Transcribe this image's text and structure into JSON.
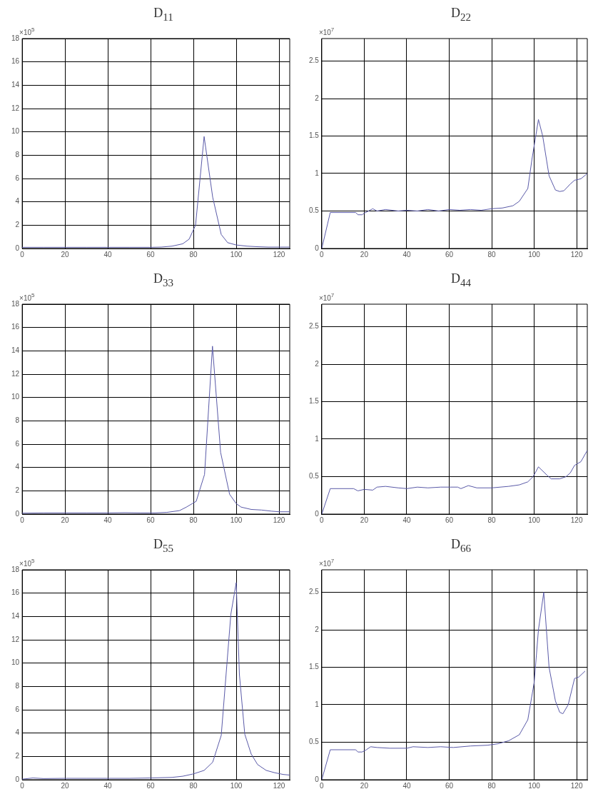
{
  "chart_data": [
    {
      "type": "line",
      "title": "D$_{11}$",
      "ylabel": "×10$^{5}$",
      "xlim": [
        0,
        125
      ],
      "ylim": [
        0,
        18
      ],
      "xticks": [
        0,
        20,
        40,
        60,
        80,
        100,
        120
      ],
      "yticks": [
        0,
        2,
        4,
        6,
        8,
        10,
        12,
        14,
        16,
        18
      ],
      "grid": true,
      "marker": "none",
      "line_style": "solid",
      "x": [
        0,
        10,
        20,
        30,
        40,
        50,
        60,
        65,
        70,
        75,
        78,
        81,
        85,
        89,
        93,
        96,
        100,
        105,
        110,
        115,
        120,
        125
      ],
      "series": [
        {
          "color": "#5a5aa8",
          "values": [
            0.1,
            0.1,
            0.1,
            0.1,
            0.1,
            0.1,
            0.1,
            0.12,
            0.2,
            0.4,
            0.8,
            2,
            9.6,
            4.4,
            1.2,
            0.5,
            0.3,
            0.2,
            0.15,
            0.12,
            0.12,
            0.12
          ]
        }
      ]
    },
    {
      "type": "line",
      "title": "D$_{22}$",
      "ylabel": "×10$^{7}$",
      "xlim": [
        0,
        125
      ],
      "ylim": [
        0,
        2.8
      ],
      "xticks": [
        0,
        20,
        40,
        60,
        80,
        100,
        120
      ],
      "yticks": [
        0,
        0.5,
        1,
        1.5,
        2,
        2.5
      ],
      "grid": true,
      "marker": "none",
      "line_style": "solid",
      "x": [
        0,
        4,
        16,
        17,
        19,
        20,
        24,
        26,
        30,
        36,
        40,
        45,
        50,
        55,
        60,
        65,
        70,
        75,
        80,
        85,
        90,
        93,
        97,
        99,
        102,
        104,
        107,
        110,
        112,
        114,
        117,
        119,
        122,
        125
      ],
      "series": [
        {
          "color": "#5a5aa8",
          "values": [
            0,
            0.48,
            0.48,
            0.45,
            0.45,
            0.47,
            0.53,
            0.5,
            0.52,
            0.5,
            0.51,
            0.5,
            0.52,
            0.5,
            0.52,
            0.51,
            0.52,
            0.51,
            0.53,
            0.54,
            0.57,
            0.63,
            0.8,
            1.2,
            1.72,
            1.5,
            0.97,
            0.78,
            0.76,
            0.77,
            0.86,
            0.91,
            0.93,
            1.0
          ]
        }
      ]
    },
    {
      "type": "line",
      "title": "D$_{33}$",
      "ylabel": "×10$^{5}$",
      "xlim": [
        0,
        125
      ],
      "ylim": [
        0,
        18
      ],
      "xticks": [
        0,
        20,
        40,
        60,
        80,
        100,
        120
      ],
      "yticks": [
        0,
        2,
        4,
        6,
        8,
        10,
        12,
        14,
        16,
        18
      ],
      "grid": true,
      "marker": "none",
      "line_style": "solid",
      "x": [
        0,
        10,
        20,
        30,
        40,
        48,
        55,
        62,
        67.6,
        73.5,
        76.7,
        81.3,
        85.2,
        88.9,
        92.7,
        96.9,
        100,
        102.3,
        107,
        111.8,
        116.6,
        120,
        125
      ],
      "series": [
        {
          "color": "#5a5aa8",
          "values": [
            0.08,
            0.1,
            0.1,
            0.1,
            0.1,
            0.12,
            0.1,
            0.1,
            0.15,
            0.3,
            0.6,
            1.1,
            3.4,
            14.4,
            5.3,
            1.7,
            0.9,
            0.6,
            0.4,
            0.35,
            0.25,
            0.2,
            0.2
          ]
        }
      ]
    },
    {
      "type": "line",
      "title": "D$_{44}$",
      "ylabel": "×10$^{7}$",
      "xlim": [
        0,
        125
      ],
      "ylim": [
        0,
        2.8
      ],
      "xticks": [
        0,
        20,
        40,
        60,
        80,
        100,
        120
      ],
      "yticks": [
        0,
        0.5,
        1,
        1.5,
        2,
        2.5
      ],
      "grid": true,
      "marker": "none",
      "line_style": "solid",
      "x": [
        0,
        4,
        15,
        17,
        20,
        24,
        26,
        30,
        36,
        40,
        45,
        50,
        56,
        64,
        65.5,
        69,
        73,
        80,
        88,
        93,
        97,
        99.5,
        102,
        106,
        108,
        112,
        115,
        117,
        119,
        122,
        125
      ],
      "series": [
        {
          "color": "#5a5aa8",
          "values": [
            0,
            0.34,
            0.34,
            0.31,
            0.33,
            0.32,
            0.36,
            0.37,
            0.35,
            0.34,
            0.36,
            0.35,
            0.36,
            0.36,
            0.34,
            0.38,
            0.35,
            0.35,
            0.37,
            0.39,
            0.43,
            0.5,
            0.63,
            0.52,
            0.47,
            0.47,
            0.5,
            0.55,
            0.65,
            0.7,
            0.85
          ]
        }
      ]
    },
    {
      "type": "line",
      "title": "D$_{55}$",
      "ylabel": "×10$^{5}$",
      "xlim": [
        0,
        125
      ],
      "ylim": [
        0,
        18
      ],
      "xticks": [
        0,
        20,
        40,
        60,
        80,
        100,
        120
      ],
      "yticks": [
        0,
        2,
        4,
        6,
        8,
        10,
        12,
        14,
        16,
        18
      ],
      "grid": true,
      "marker": "none",
      "line_style": "solid",
      "x": [
        0,
        5,
        10,
        20,
        30,
        40,
        50,
        60,
        70,
        75,
        80,
        85,
        89,
        93,
        97.5,
        100,
        101.5,
        104,
        107,
        110,
        114,
        118,
        122,
        125
      ],
      "series": [
        {
          "color": "#5a5aa8",
          "values": [
            0.05,
            0.15,
            0.1,
            0.12,
            0.12,
            0.12,
            0.12,
            0.15,
            0.2,
            0.3,
            0.5,
            0.8,
            1.5,
            3.8,
            14.2,
            16.9,
            9,
            3.9,
            2.2,
            1.3,
            0.8,
            0.6,
            0.45,
            0.4
          ]
        }
      ]
    },
    {
      "type": "line",
      "title": "D$_{66}$",
      "ylabel": "×10$^{7}$",
      "xlim": [
        0,
        125
      ],
      "ylim": [
        0,
        2.8
      ],
      "xticks": [
        0,
        20,
        40,
        60,
        80,
        100,
        120
      ],
      "yticks": [
        0,
        0.5,
        1,
        1.5,
        2,
        2.5
      ],
      "grid": true,
      "marker": "none",
      "line_style": "solid",
      "x": [
        0,
        4,
        16,
        17,
        19,
        21,
        23,
        26,
        32,
        40,
        43,
        50,
        56,
        62,
        70,
        78,
        83,
        88,
        93,
        97,
        100,
        102,
        104.5,
        107,
        110,
        112,
        113.5,
        116,
        119,
        121,
        124
      ],
      "series": [
        {
          "color": "#5a5aa8",
          "values": [
            0,
            0.4,
            0.4,
            0.37,
            0.37,
            0.4,
            0.44,
            0.43,
            0.42,
            0.42,
            0.44,
            0.43,
            0.44,
            0.43,
            0.45,
            0.46,
            0.48,
            0.52,
            0.6,
            0.8,
            1.3,
            2.0,
            2.5,
            1.5,
            1.05,
            0.9,
            0.88,
            1.0,
            1.35,
            1.37,
            1.45
          ]
        }
      ]
    }
  ]
}
